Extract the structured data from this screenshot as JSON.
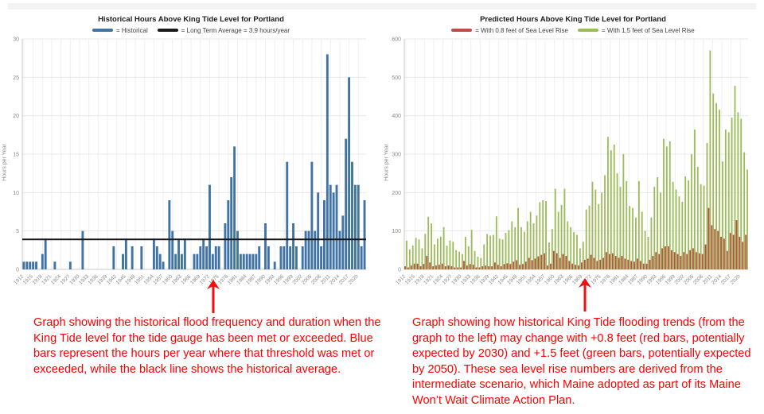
{
  "captions": {
    "left": "Graph showing the historical flood frequency and duration when the King Tide level for the tide gauge has been met or exceeded.  Blue bars represent the hours per year where that threshold was met or exceeded, while the black line shows the historical average.",
    "right": "Graph showing how historical King Tide flooding trends (from the graph to the left) may change with +0.8 feet (red bars, potentially expected by 2030) and +1.5 feet (green bars, potentially expected by 2050). These sea level rise numbers are derived from the intermediate scenario, which Maine adopted as part of its Maine Won’t Wait Climate Action Plan."
  },
  "colors": {
    "historical_blue": "#4173a5",
    "average_black": "#1a1a1a",
    "slr_08_red": "#bf4c49",
    "slr_15_green": "#9cbb59",
    "caption_red": "#fe0000",
    "gridline": "#e8e8e8",
    "axis": "#c8c8c8",
    "tick_text": "#8a8a8a"
  },
  "chart_data": [
    {
      "type": "bar",
      "title": "Historical Hours Above King Tide Level for Portland",
      "ylabel": "Hours per Year",
      "xlabel": "",
      "ylim": [
        0,
        30
      ],
      "yticks": [
        0,
        5,
        10,
        15,
        20,
        25,
        30
      ],
      "grid": true,
      "legend_position": "top",
      "legend": [
        {
          "label": "= Historical",
          "color": "#4173a5"
        },
        {
          "label": "= Long Term Average = 3.9 hours/year",
          "color": "#1a1a1a"
        }
      ],
      "x_start_year": 1912,
      "x_end_year": 2022,
      "x_tick_labels": [
        "1912",
        "1915",
        "1918",
        "1921",
        "1924",
        "1927",
        "1930",
        "1933",
        "1936",
        "1939",
        "1942",
        "1945",
        "1948",
        "1951",
        "1954",
        "1957",
        "1960",
        "1963",
        "1966",
        "1969",
        "1972",
        "1975",
        "1978",
        "1981",
        "1984",
        "1987",
        "1990",
        "1993",
        "1996",
        "1999",
        "2002",
        "2005",
        "2008",
        "2011",
        "2014",
        "2017",
        "2020"
      ],
      "average_line": {
        "label": "Long Term Average",
        "value": 3.9,
        "color": "#1a1a1a"
      },
      "series": [
        {
          "name": "Historical",
          "color": "#4173a5",
          "values": [
            1,
            1,
            1,
            1,
            1,
            0,
            2,
            4,
            0,
            0,
            1,
            0,
            0,
            0,
            0,
            1,
            0,
            0,
            0,
            5,
            0,
            0,
            0,
            0,
            0,
            0,
            0,
            0,
            0,
            3,
            0,
            0,
            2,
            4,
            0,
            3,
            0,
            0,
            3,
            0,
            0,
            0,
            4,
            3,
            2,
            1,
            0,
            9,
            5,
            2,
            4,
            2,
            4,
            0,
            0,
            2,
            2,
            3,
            4,
            3,
            11,
            2,
            3,
            3,
            0,
            6,
            9,
            12,
            16,
            5,
            2,
            2,
            2,
            2,
            2,
            2,
            3,
            0,
            6,
            3,
            0,
            1,
            0,
            3,
            3,
            14,
            3,
            6,
            3,
            0,
            3,
            5,
            5,
            14,
            5,
            10,
            3,
            9,
            28,
            11,
            10,
            11,
            5,
            7,
            17,
            25,
            14,
            11,
            11,
            3,
            9
          ]
        }
      ]
    },
    {
      "type": "bar",
      "title": "Predicted Hours Above King Tide Level for Portland",
      "ylabel": "Hours per Year",
      "xlabel": "",
      "ylim": [
        0,
        600
      ],
      "yticks": [
        0,
        100,
        200,
        300,
        400,
        500,
        600
      ],
      "grid": true,
      "legend_position": "top",
      "legend": [
        {
          "label": "= With 0.8 feet of Sea Level Rise",
          "color": "#bf4c49"
        },
        {
          "label": "= With 1.5 feet of Sea Level Rise",
          "color": "#9cbb59"
        }
      ],
      "x_start_year": 1912,
      "x_end_year": 2022,
      "x_tick_labels": [
        "1912",
        "1915",
        "1918",
        "1921",
        "1924",
        "1927",
        "1930",
        "1933",
        "1936",
        "1939",
        "1942",
        "1945",
        "1948",
        "1951",
        "1954",
        "1957",
        "1960",
        "1963",
        "1966",
        "1969",
        "1972",
        "1975",
        "1978",
        "1981",
        "1984",
        "1987",
        "1990",
        "1993",
        "1996",
        "1999",
        "2002",
        "2005",
        "2008",
        "2011",
        "2014",
        "2017",
        "2020"
      ],
      "series": [
        {
          "name": "With 0.8 feet of Sea Level Rise",
          "color": "#bf4c49",
          "values": [
            8,
            5,
            10,
            15,
            15,
            8,
            14,
            35,
            18,
            8,
            10,
            12,
            15,
            8,
            10,
            8,
            5,
            5,
            5,
            22,
            10,
            14,
            12,
            5,
            5,
            8,
            10,
            8,
            8,
            18,
            12,
            8,
            14,
            16,
            14,
            20,
            24,
            12,
            14,
            20,
            30,
            24,
            28,
            34,
            38,
            42,
            10,
            15,
            48,
            42,
            30,
            40,
            35,
            22,
            15,
            12,
            10,
            18,
            25,
            28,
            38,
            30,
            22,
            25,
            30,
            45,
            40,
            42,
            35,
            30,
            35,
            28,
            25,
            22,
            20,
            28,
            22,
            15,
            15,
            25,
            35,
            45,
            40,
            55,
            60,
            60,
            50,
            45,
            40,
            35,
            45,
            40,
            50,
            55,
            45,
            42,
            40,
            65,
            160,
            115,
            105,
            100,
            85,
            80,
            48,
            95,
            90,
            128,
            85,
            72,
            90
          ]
        },
        {
          "name": "With 1.5 feet of Sea Level Rise",
          "color": "#9cbb59",
          "values": [
            75,
            52,
            62,
            82,
            78,
            55,
            92,
            137,
            120,
            65,
            80,
            85,
            110,
            62,
            75,
            72,
            50,
            46,
            40,
            85,
            60,
            103,
            48,
            33,
            30,
            65,
            92,
            88,
            90,
            138,
            80,
            78,
            95,
            102,
            125,
            110,
            160,
            110,
            98,
            125,
            150,
            120,
            140,
            175,
            180,
            178,
            70,
            105,
            210,
            150,
            168,
            210,
            125,
            110,
            97,
            90,
            55,
            72,
            156,
            166,
            228,
            208,
            170,
            200,
            245,
            345,
            310,
            325,
            250,
            215,
            300,
            230,
            165,
            160,
            135,
            230,
            150,
            100,
            85,
            135,
            215,
            240,
            200,
            340,
            320,
            333,
            228,
            208,
            190,
            176,
            242,
            232,
            300,
            364,
            267,
            222,
            218,
            329,
            570,
            458,
            433,
            416,
            281,
            364,
            357,
            395,
            478,
            409,
            392,
            305,
            260
          ]
        }
      ]
    }
  ]
}
